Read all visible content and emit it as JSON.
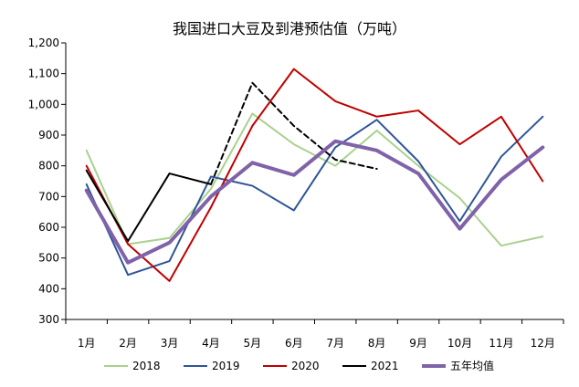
{
  "chart_data": {
    "type": "line",
    "title": "我国进口大豆及到港预估值（万吨）",
    "categories": [
      "1月",
      "2月",
      "3月",
      "4月",
      "5月",
      "6月",
      "7月",
      "8月",
      "9月",
      "10月",
      "11月",
      "12月"
    ],
    "y_ticks": [
      "300",
      "400",
      "500",
      "600",
      "700",
      "800",
      "900",
      "1,000",
      "1,100",
      "1,200"
    ],
    "ylim": [
      300,
      1200
    ],
    "grid": false,
    "legend_position": "bottom",
    "series": [
      {
        "name": "2018",
        "color": "#a9d18e",
        "width": 2,
        "values": [
          850,
          545,
          565,
          725,
          970,
          870,
          800,
          915,
          800,
          695,
          540,
          570
        ]
      },
      {
        "name": "2019",
        "color": "#2f5597",
        "width": 2,
        "values": [
          740,
          445,
          490,
          765,
          735,
          655,
          860,
          950,
          815,
          620,
          830,
          960
        ]
      },
      {
        "name": "2020",
        "color": "#c00000",
        "width": 2,
        "values": [
          800,
          545,
          425,
          665,
          930,
          1115,
          1010,
          960,
          980,
          870,
          960,
          750
        ]
      },
      {
        "name": "2021",
        "color": "#000000",
        "width": 2,
        "forecast_from_index": 4,
        "values": [
          785,
          555,
          775,
          740,
          1070,
          930,
          820,
          790,
          null,
          null,
          null,
          null
        ]
      },
      {
        "name": "五年均值",
        "color": "#7f62a8",
        "width": 4,
        "values": [
          720,
          485,
          550,
          700,
          810,
          770,
          880,
          850,
          775,
          595,
          755,
          860
        ]
      }
    ]
  }
}
